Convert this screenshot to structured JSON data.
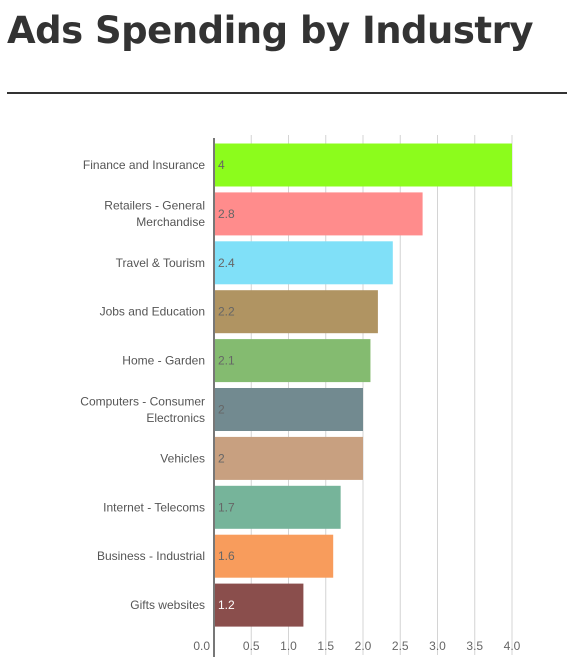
{
  "title": "Ads Spending by Industry",
  "chart_data": {
    "type": "bar",
    "orientation": "horizontal",
    "categories": [
      "Finance and Insurance",
      "Retailers - General Merchandise",
      "Travel & Tourism",
      "Jobs and Education",
      "Home - Garden",
      "Computers - Consumer Electronics",
      "Vehicles",
      "Internet - Telecoms",
      "Business - Industrial",
      "Gifts websites"
    ],
    "category_lines": [
      [
        "Finance and Insurance"
      ],
      [
        "Retailers - General",
        "Merchandise"
      ],
      [
        "Travel & Tourism"
      ],
      [
        "Jobs and Education"
      ],
      [
        "Home - Garden"
      ],
      [
        "Computers - Consumer",
        "Electronics"
      ],
      [
        "Vehicles"
      ],
      [
        "Internet - Telecoms"
      ],
      [
        "Business - Industrial"
      ],
      [
        "Gifts websites"
      ]
    ],
    "values": [
      4,
      2.8,
      2.4,
      2.2,
      2.1,
      2,
      2,
      1.7,
      1.6,
      1.2
    ],
    "value_labels": [
      "4",
      "2.8",
      "2.4",
      "2.2",
      "2.1",
      "2",
      "2",
      "1.7",
      "1.6",
      "1.2"
    ],
    "colors": [
      "#8cfc1c",
      "#ff8c8c",
      "#80e0f8",
      "#b09462",
      "#84bb70",
      "#728a90",
      "#c8a080",
      "#76b49a",
      "#f89c5c",
      "#8a4e4c"
    ],
    "value_label_colors": [
      "#666666",
      "#666666",
      "#666666",
      "#666666",
      "#666666",
      "#666666",
      "#666666",
      "#666666",
      "#666666",
      "#ffffff"
    ],
    "xlim": [
      0,
      4.0
    ],
    "x_ticks": [
      0,
      0.5,
      1,
      1.5,
      2,
      2.5,
      3,
      3.5,
      4
    ],
    "x_tick_labels": [
      "0.0",
      "0.5",
      "1.0",
      "1.5",
      "2.0",
      "2.5",
      "3.0",
      "3.5",
      "4.0"
    ],
    "grid": true,
    "title": "",
    "xlabel": "",
    "ylabel": ""
  }
}
